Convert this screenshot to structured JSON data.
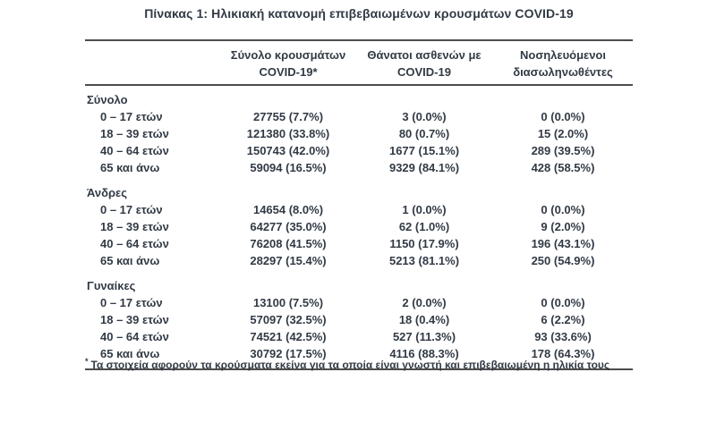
{
  "title": "Πίνακας 1: Ηλικιακή κατανομή επιβεβαιωμένων κρουσμάτων COVID-19",
  "colors": {
    "text": "#323a45",
    "rule": "#4c4c4c",
    "background": "#ffffff"
  },
  "table": {
    "column_headers": {
      "cases_line1": "Σύνολο κρουσμάτων",
      "cases_line2": "COVID-19*",
      "deaths_line1": "Θάνατοι ασθενών με",
      "deaths_line2": "COVID-19",
      "intubated_line1": "Νοσηλευόμενοι",
      "intubated_line2": "διασωληνωθέντες"
    },
    "sections": [
      {
        "label": "Σύνολο",
        "rows": [
          {
            "age": "0 – 17 ετών",
            "cases": "27755 (7.7%)",
            "deaths": "3 (0.0%)",
            "intubated": "0 (0.0%)"
          },
          {
            "age": "18 – 39 ετών",
            "cases": "121380 (33.8%)",
            "deaths": "80 (0.7%)",
            "intubated": "15 (2.0%)"
          },
          {
            "age": "40 – 64 ετών",
            "cases": "150743 (42.0%)",
            "deaths": "1677 (15.1%)",
            "intubated": "289 (39.5%)"
          },
          {
            "age": "65 και άνω",
            "cases": "59094 (16.5%)",
            "deaths": "9329 (84.1%)",
            "intubated": "428 (58.5%)"
          }
        ]
      },
      {
        "label": "Άνδρες",
        "rows": [
          {
            "age": "0 – 17 ετών",
            "cases": "14654 (8.0%)",
            "deaths": "1 (0.0%)",
            "intubated": "0 (0.0%)"
          },
          {
            "age": "18 – 39 ετών",
            "cases": "64277 (35.0%)",
            "deaths": "62 (1.0%)",
            "intubated": "9 (2.0%)"
          },
          {
            "age": "40 – 64 ετών",
            "cases": "76208 (41.5%)",
            "deaths": "1150 (17.9%)",
            "intubated": "196 (43.1%)"
          },
          {
            "age": "65 και άνω",
            "cases": "28297 (15.4%)",
            "deaths": "5213 (81.1%)",
            "intubated": "250 (54.9%)"
          }
        ]
      },
      {
        "label": "Γυναίκες",
        "rows": [
          {
            "age": "0 – 17 ετών",
            "cases": "13100 (7.5%)",
            "deaths": "2 (0.0%)",
            "intubated": "0 (0.0%)"
          },
          {
            "age": "18 – 39 ετών",
            "cases": "57097 (32.5%)",
            "deaths": "18 (0.4%)",
            "intubated": "6 (2.2%)"
          },
          {
            "age": "40 – 64 ετών",
            "cases": "74521 (42.5%)",
            "deaths": "527 (11.3%)",
            "intubated": "93 (33.6%)"
          },
          {
            "age": "65 και άνω",
            "cases": "30792 (17.5%)",
            "deaths": "4116 (88.3%)",
            "intubated": "178 (64.3%)"
          }
        ]
      }
    ],
    "footnote_marker": "*",
    "footnote": "Τα στοιχεία αφορούν τα κρούσματα εκείνα για τα οποία είναι γνωστή και επιβεβαιωμένη η ηλικία τους"
  }
}
